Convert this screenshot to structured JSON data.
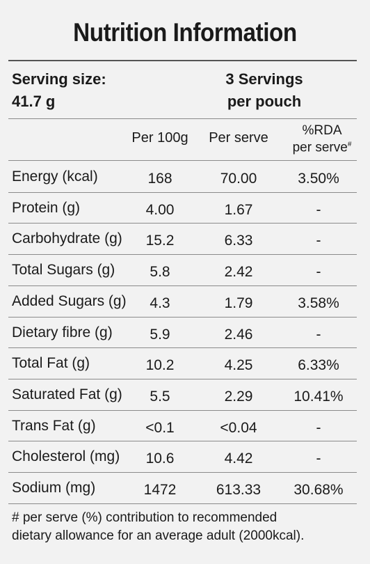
{
  "title": "Nutrition Information",
  "serving": {
    "size_label": "Serving size:",
    "size_value": "41.7 g",
    "servings_line1": "3 Servings",
    "servings_line2": "per pouch"
  },
  "headers": {
    "per100": "Per 100g",
    "perserve": "Per serve",
    "rda_line1": "%RDA",
    "rda_line2": "per serve",
    "rda_mark": "#"
  },
  "rows": [
    {
      "name": "Energy (kcal)",
      "per100": "168",
      "perserve": "70.00",
      "rda": "3.50%"
    },
    {
      "name": "Protein (g)",
      "per100": "4.00",
      "perserve": "1.67",
      "rda": "-"
    },
    {
      "name": "Carbohydrate (g)",
      "per100": "15.2",
      "perserve": "6.33",
      "rda": "-"
    },
    {
      "name": "Total Sugars (g)",
      "per100": "5.8",
      "perserve": "2.42",
      "rda": "-"
    },
    {
      "name": "Added Sugars (g)",
      "per100": "4.3",
      "perserve": "1.79",
      "rda": "3.58%"
    },
    {
      "name": "Dietary fibre (g)",
      "per100": "5.9",
      "perserve": "2.46",
      "rda": "-"
    },
    {
      "name": "Total Fat (g)",
      "per100": "10.2",
      "perserve": "4.25",
      "rda": "6.33%"
    },
    {
      "name": "Saturated Fat (g)",
      "per100": "5.5",
      "perserve": "2.29",
      "rda": "10.41%"
    },
    {
      "name": "Trans Fat (g)",
      "per100": "<0.1",
      "perserve": "<0.04",
      "rda": "-"
    },
    {
      "name": "Cholesterol (mg)",
      "per100": "10.6",
      "perserve": "4.42",
      "rda": "-"
    },
    {
      "name": "Sodium (mg)",
      "per100": "1472",
      "perserve": "613.33",
      "rda": "30.68%"
    }
  ],
  "footnote": {
    "line1": "# per serve (%) contribution to recommended",
    "line2": "dietary allowance for an average adult (2000kcal)."
  }
}
